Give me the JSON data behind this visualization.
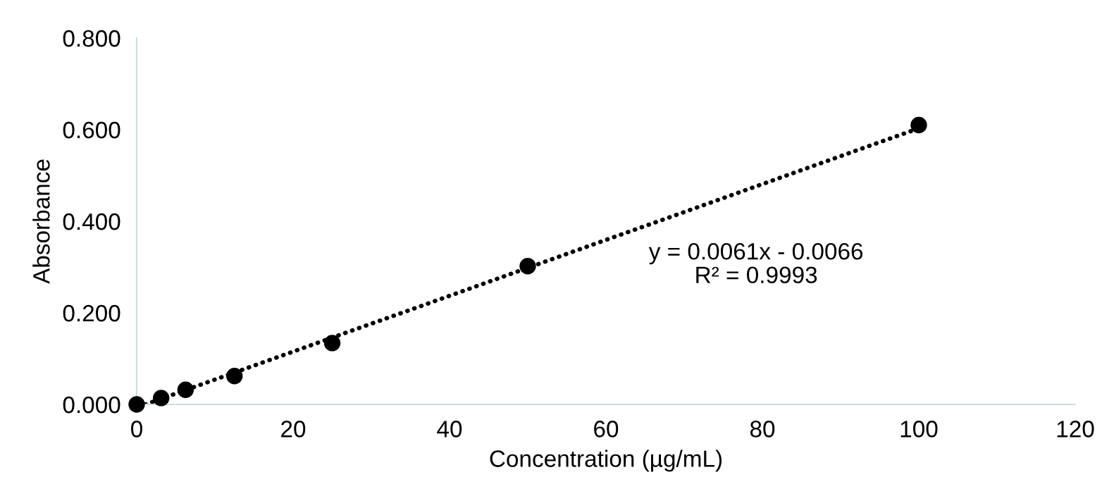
{
  "chart_data": {
    "type": "scatter",
    "xlabel": "Concentration (µg/mL)",
    "ylabel": "Absorbance",
    "x": [
      0,
      3.125,
      6.25,
      12.5,
      25,
      50,
      100
    ],
    "series": [
      {
        "color": "#000000",
        "marker": "circle",
        "values": [
          0.0,
          0.014,
          0.032,
          0.062,
          0.134,
          0.302,
          0.61
        ]
      },
      {
        "type": "line",
        "color": "#000000",
        "line_style": "dotted",
        "x": [
          1.1,
          100
        ],
        "values": [
          0.0,
          0.603
        ]
      }
    ],
    "xlim": [
      0,
      120
    ],
    "xticks": [
      0,
      20,
      40,
      60,
      80,
      100,
      120
    ],
    "ylim": [
      0,
      0.8
    ],
    "yticks": [
      {
        "value": 0,
        "label": "0.000"
      },
      {
        "value": 0.2,
        "label": "0.200"
      },
      {
        "value": 0.4,
        "label": "0.400"
      },
      {
        "value": 0.6,
        "label": "0.600"
      },
      {
        "value": 0.8,
        "label": "0.800"
      }
    ],
    "annotations": [
      "y = 0.0061x - 0.0066\nR² = 0.9993"
    ],
    "grid": false,
    "legend": false
  }
}
